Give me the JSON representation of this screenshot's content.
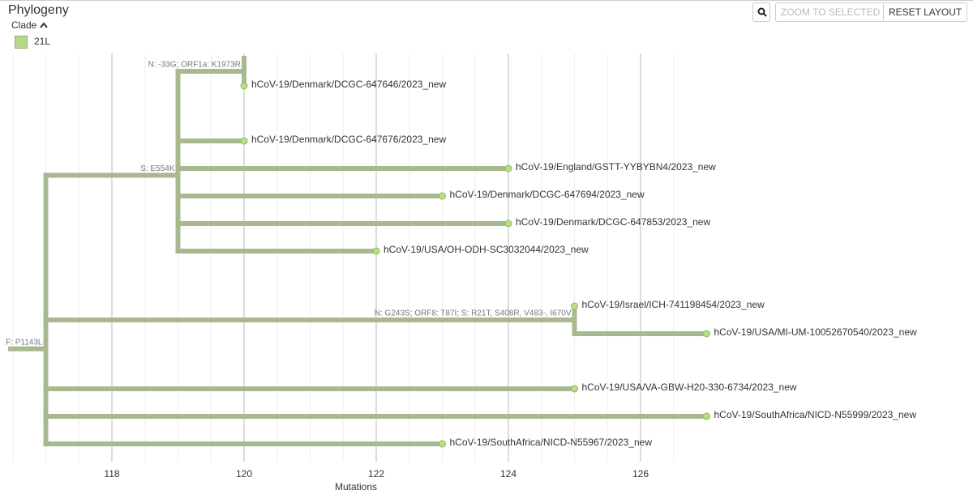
{
  "title": "Phylogeny",
  "legend": {
    "title": "Clade",
    "items": [
      {
        "label": "21L",
        "color": "#b6d88c"
      }
    ]
  },
  "buttons": [
    "ZOOM TO SELECTED",
    "RESET LAYOUT"
  ],
  "chart_data": {
    "type": "tree",
    "x_label": "Mutations",
    "xlim": [
      116.5,
      131
    ],
    "xticks": [
      118,
      120,
      122,
      124,
      126
    ],
    "x_minor_ticks": [
      116.5,
      117,
      117.5,
      118.5,
      119,
      119.5,
      120.5,
      121,
      121.5,
      122.5,
      123,
      123.5,
      124.5,
      125,
      125.5,
      126.5
    ],
    "branch_color": "#a9b98f",
    "tip_color": "#b7e07f",
    "tree": {
      "mutations": 117,
      "label": "F: P1143L",
      "children": [
        {
          "mutations": 119,
          "label": "S: E554K",
          "children": [
            {
              "mutations": 120,
              "label": "N: -33G; ORF1a: K1973R",
              "children": [
                {
                  "name": "hCoV-19/Denmark/DCGC-647646/2023_new",
                  "mutations": 120
                }
              ]
            },
            {
              "name": "hCoV-19/Denmark/DCGC-647676/2023_new",
              "mutations": 120
            },
            {
              "name": "hCoV-19/England/GSTT-YYBYBN4/2023_new",
              "mutations": 124
            },
            {
              "name": "hCoV-19/Denmark/DCGC-647694/2023_new",
              "mutations": 123
            },
            {
              "name": "hCoV-19/Denmark/DCGC-647853/2023_new",
              "mutations": 124
            },
            {
              "name": "hCoV-19/USA/OH-ODH-SC3032044/2023_new",
              "mutations": 122
            }
          ]
        },
        {
          "mutations": 125,
          "label": "N: G243S; ORF8: T87I; S: R21T, S408R, V483-, I670V",
          "children": [
            {
              "name": "hCoV-19/Israel/ICH-741198454/2023_new",
              "mutations": 125
            },
            {
              "name": "hCoV-19/USA/MI-UM-10052670540/2023_new",
              "mutations": 127
            }
          ]
        },
        {
          "name": "hCoV-19/USA/VA-GBW-H20-330-6734/2023_new",
          "mutations": 125
        },
        {
          "name": "hCoV-19/SouthAfrica/NICD-N55999/2023_new",
          "mutations": 127
        },
        {
          "name": "hCoV-19/SouthAfrica/NICD-N55967/2023_new",
          "mutations": 123
        }
      ]
    }
  }
}
